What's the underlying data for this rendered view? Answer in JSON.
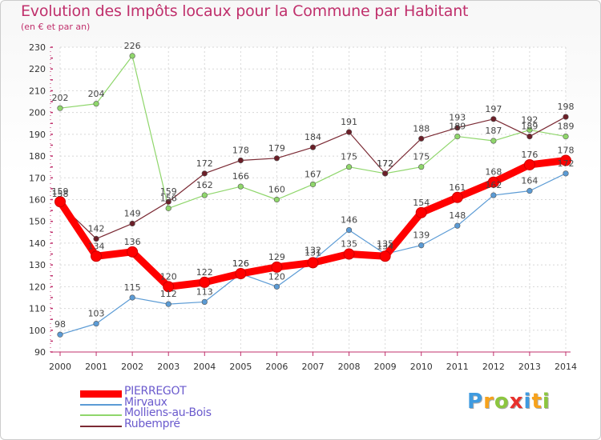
{
  "chart_data": {
    "type": "line",
    "title": "Evolution des Impôts locaux pour la Commune par Habitant",
    "subtitle": "(en € et par an)",
    "xlabel": "",
    "ylabel": "",
    "ylim": [
      90,
      230
    ],
    "y_ticks": [
      90,
      100,
      110,
      120,
      130,
      140,
      150,
      160,
      170,
      180,
      190,
      200,
      210,
      220,
      230
    ],
    "grid": true,
    "legend_position": "bottom-left",
    "x": [
      "2000",
      "2001",
      "2002",
      "2003",
      "2004",
      "2005",
      "2006",
      "2007",
      "2008",
      "2009",
      "2010",
      "2011",
      "2012",
      "2013",
      "2014"
    ],
    "series": [
      {
        "name": "Mirvaux",
        "color": "#5b9bd5",
        "values": [
          98,
          103,
          115,
          112,
          113,
          126,
          120,
          132,
          146,
          135,
          139,
          148,
          162,
          164,
          172
        ]
      },
      {
        "name": "Molliens-au-Bois",
        "color": "#8fd66b",
        "values": [
          202,
          204,
          226,
          156,
          162,
          166,
          160,
          167,
          175,
          172,
          175,
          189,
          187,
          192,
          189
        ]
      },
      {
        "name": "Rubempré",
        "color": "#7b2a34",
        "values": [
          158,
          142,
          149,
          159,
          172,
          178,
          179,
          184,
          191,
          172,
          188,
          193,
          197,
          189,
          198
        ]
      },
      {
        "name": "PIERREGOT",
        "color": "#ff0000",
        "values": [
          159,
          134,
          136,
          120,
          122,
          126,
          129,
          131,
          135,
          134,
          154,
          161,
          168,
          176,
          178
        ]
      }
    ],
    "legend_order": [
      "PIERREGOT",
      "Mirvaux",
      "Molliens-au-Bois",
      "Rubempré"
    ]
  },
  "legend_text_color": "#6a5acd",
  "logo": {
    "letters": [
      "P",
      "r",
      "o",
      "x",
      "i",
      "t",
      "i"
    ],
    "colors": [
      "#3f9be0",
      "#f7a21b",
      "#8cc63f",
      "#e8312c",
      "#3f9be0",
      "#f7a21b",
      "#8cc63f"
    ]
  }
}
